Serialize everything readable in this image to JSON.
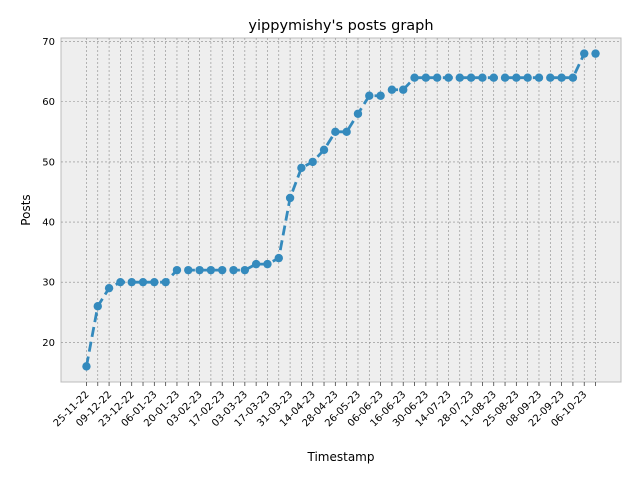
{
  "chart_data": {
    "type": "line",
    "title": "yippymishy's posts graph",
    "xlabel": "Timestamp",
    "ylabel": "Posts",
    "ylim": [
      13.4,
      70.6
    ],
    "yticks": [
      20,
      30,
      40,
      50,
      60,
      70
    ],
    "grid": true,
    "line_style": "dashed",
    "marker": "circle",
    "series_color": "#348ABD",
    "background_color": "#EEEEEE",
    "xtick_labels": [
      "25-11-22",
      "09-12-22",
      "23-12-22",
      "06-01-23",
      "20-01-23",
      "03-02-23",
      "17-02-23",
      "03-03-23",
      "17-03-23",
      "31-03-23",
      "14-04-23",
      "28-04-23",
      "26-05-23",
      "06-06-23",
      "16-06-23",
      "30-06-23",
      "14-07-23",
      "28-07-23",
      "11-08-23",
      "25-08-23",
      "08-09-23",
      "22-09-23",
      "06-10-23"
    ],
    "series": [
      {
        "values": [
          16,
          26,
          29,
          30,
          30,
          30,
          30,
          30,
          32,
          32,
          32,
          32,
          32,
          32,
          32,
          33,
          33,
          34,
          44,
          49,
          50,
          52,
          55,
          55,
          58,
          61,
          61,
          62,
          62,
          64,
          64,
          64,
          64,
          64,
          64,
          64,
          64,
          64,
          64,
          64,
          64,
          64,
          64,
          64,
          68,
          68
        ]
      }
    ]
  }
}
